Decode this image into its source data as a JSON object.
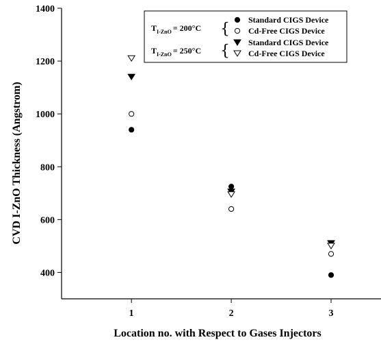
{
  "chart_data": {
    "type": "scatter",
    "title": "",
    "xlabel": "Location no. with Respect to Gases Injectors",
    "ylabel": "CVD I-ZnO Thickness (Angstrom)",
    "xlim": [
      0.3,
      3.5
    ],
    "ylim": [
      300,
      1400
    ],
    "xticks": [
      1,
      2,
      3
    ],
    "yticks": [
      400,
      600,
      800,
      1000,
      1200,
      1400
    ],
    "legend_position": "top-right",
    "legend": {
      "groups": [
        {
          "temp_prefix": "T",
          "temp_sub": "I-ZnO",
          "temp_value": "= 200°C",
          "entries": [
            "Standard CIGS Device",
            "Cd-Free CIGS Device"
          ]
        },
        {
          "temp_prefix": "T",
          "temp_sub": "I-ZnO",
          "temp_value": "= 250°C",
          "entries": [
            "Standard CIGS Device",
            "Cd-Free CIGS Device"
          ]
        }
      ]
    },
    "series": [
      {
        "name": "Standard CIGS Device (200°C)",
        "marker": "circle-filled",
        "x": [
          1,
          2,
          3
        ],
        "y": [
          940,
          725,
          390
        ]
      },
      {
        "name": "Cd-Free CIGS Device (200°C)",
        "marker": "circle-open",
        "x": [
          1,
          2,
          3
        ],
        "y": [
          1000,
          640,
          470
        ]
      },
      {
        "name": "Standard CIGS Device (250°C)",
        "marker": "triangle-down-filled",
        "x": [
          1,
          2,
          3
        ],
        "y": [
          1140,
          705,
          510
        ]
      },
      {
        "name": "Cd-Free CIGS Device (250°C)",
        "marker": "triangle-down-open",
        "x": [
          1,
          2,
          3
        ],
        "y": [
          1210,
          695,
          500
        ]
      }
    ]
  }
}
